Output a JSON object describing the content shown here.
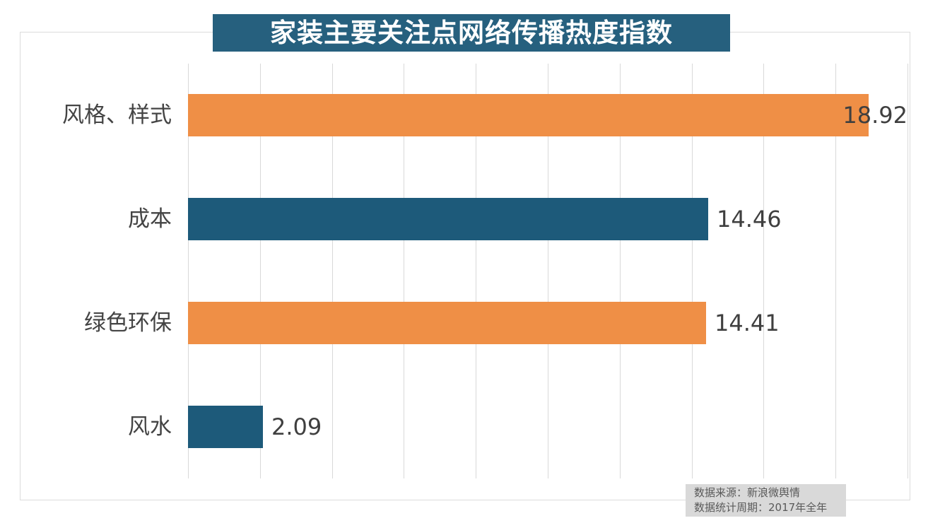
{
  "chart_data": {
    "type": "bar",
    "orientation": "horizontal",
    "title": "家装主要关注点网络传播热度指数",
    "categories": [
      "风格、样式",
      "成本",
      "绿色环保",
      "风水"
    ],
    "values": [
      18.92,
      14.46,
      14.41,
      2.09
    ],
    "bar_colors": [
      "#ef8f46",
      "#1d5a7a",
      "#ef8f46",
      "#1d5a7a"
    ],
    "xlabel": "",
    "ylabel": "",
    "xlim": [
      0,
      20
    ],
    "grid_interval": 2,
    "grid": true,
    "legend": false
  },
  "footer": {
    "source": "数据来源：新浪微舆情",
    "period": "数据统计周期：2017年全年"
  },
  "colors": {
    "title_bg": "#26607e",
    "orange": "#ef8f46",
    "blue": "#1d5a7a",
    "grid": "#d9d9d9",
    "border": "#dcdcdc",
    "footer_bg": "#d9d9d9",
    "label_text": "#444444",
    "footer_text": "#595959"
  }
}
